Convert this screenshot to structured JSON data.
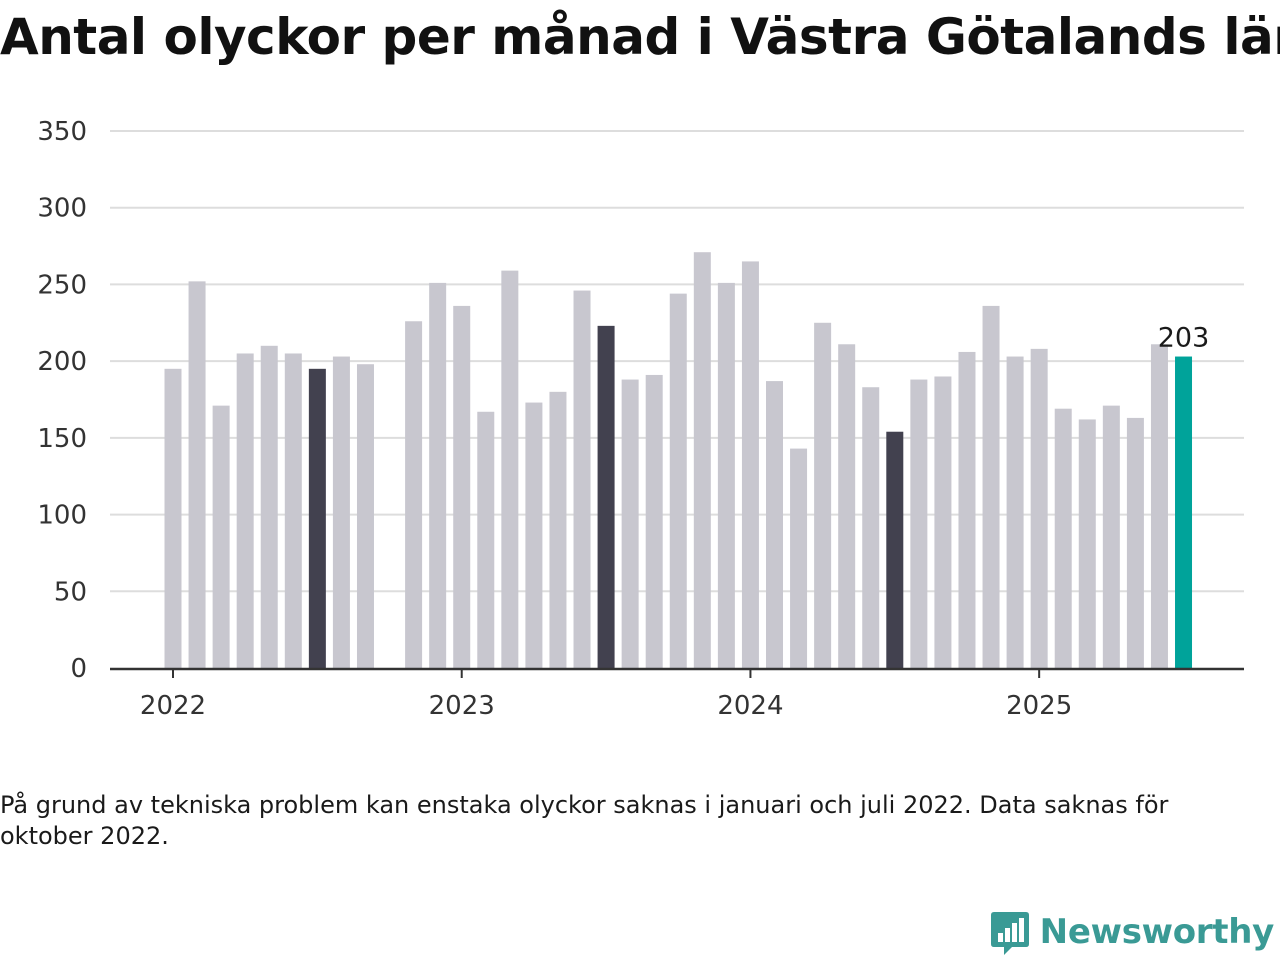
{
  "title": "Antal olyckor per månad i Västra Götalands län",
  "note": "På grund av tekniska problem kan enstaka olyckor saknas i januari och juli 2022. Data saknas för oktober 2022.",
  "brand": "Newsworthy",
  "colors": {
    "bar": "#c8c7cf",
    "highlight": "#42414f",
    "latest": "#00a39a",
    "grid": "#dddddd",
    "axis": "#333333",
    "text": "#333333",
    "brand": "#3a9a95"
  },
  "chart_data": {
    "type": "bar",
    "title": "Antal olyckor per månad i Västra Götalands län",
    "xlabel": "",
    "ylabel": "",
    "ylim": [
      0,
      350
    ],
    "y_ticks": [
      0,
      50,
      100,
      150,
      200,
      250,
      300,
      350
    ],
    "x_tick_labels": [
      "2022",
      "2023",
      "2024",
      "2025"
    ],
    "grid": true,
    "value_label": "203",
    "categories": [
      "2022-01",
      "2022-02",
      "2022-03",
      "2022-04",
      "2022-05",
      "2022-06",
      "2022-07",
      "2022-08",
      "2022-09",
      "2022-10",
      "2022-11",
      "2022-12",
      "2023-01",
      "2023-02",
      "2023-03",
      "2023-04",
      "2023-05",
      "2023-06",
      "2023-07",
      "2023-08",
      "2023-09",
      "2023-10",
      "2023-11",
      "2023-12",
      "2024-01",
      "2024-02",
      "2024-03",
      "2024-04",
      "2024-05",
      "2024-06",
      "2024-07",
      "2024-08",
      "2024-09",
      "2024-10",
      "2024-11",
      "2024-12",
      "2025-01",
      "2025-02",
      "2025-03",
      "2025-04",
      "2025-05",
      "2025-06",
      "2025-07"
    ],
    "values": [
      195,
      252,
      171,
      205,
      210,
      205,
      195,
      203,
      198,
      null,
      226,
      251,
      236,
      167,
      259,
      173,
      180,
      246,
      223,
      188,
      191,
      244,
      271,
      251,
      265,
      187,
      143,
      225,
      211,
      183,
      154,
      188,
      190,
      206,
      236,
      203,
      208,
      169,
      162,
      171,
      163,
      211,
      203
    ],
    "highlighted": [
      "2022-07",
      "2023-07",
      "2024-07"
    ],
    "latest": "2025-07"
  }
}
